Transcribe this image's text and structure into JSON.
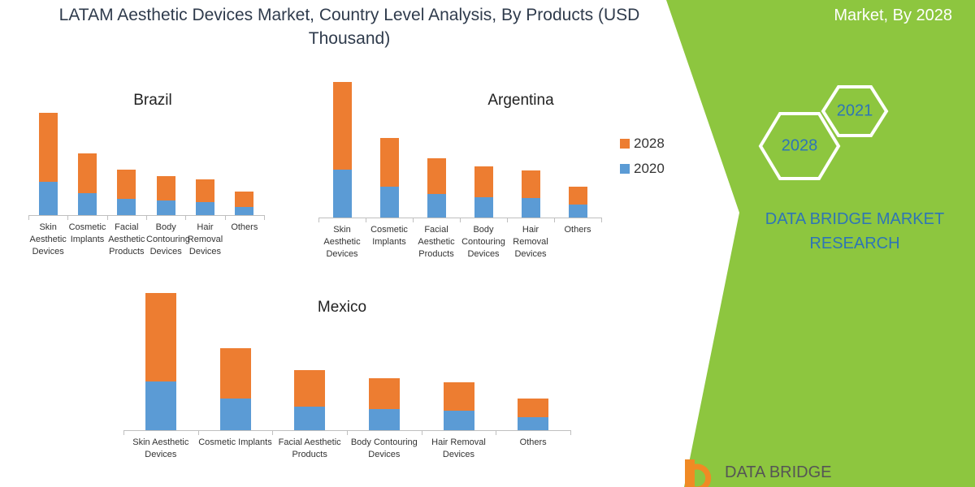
{
  "title": "LATAM Aesthetic Devices Market, Country Level Analysis, By Products (USD Thousand)",
  "panel": {
    "heading": "Market, By 2028",
    "hex_back": "2021",
    "hex_front": "2028",
    "brand": "DATA BRIDGE MARKET RESEARCH",
    "logo": "DATA BRIDGE"
  },
  "chart_data": [
    {
      "type": "stacked-bar",
      "title": "Brazil",
      "categories": [
        "Skin Aesthetic Devices",
        "Cosmetic Implants",
        "Facial Aesthetic Products",
        "Body Contouring Devices",
        "Hair Removal Devices",
        "Others"
      ],
      "series": [
        {
          "color": "#5b9bd5",
          "values": [
            41,
            27,
            20,
            18,
            16,
            10
          ]
        },
        {
          "color": "#ed7d31",
          "values": [
            85,
            49,
            36,
            30,
            28,
            19
          ]
        }
      ]
    },
    {
      "type": "stacked-bar",
      "title": "Argentina",
      "categories": [
        "Skin Aesthetic Devices",
        "Cosmetic Implants",
        "Facial Aesthetic Products",
        "Body Contouring Devices",
        "Hair Removal Devices",
        "Others"
      ],
      "series": [
        {
          "name": "2020",
          "color": "#5b9bd5",
          "values": [
            59,
            38,
            29,
            25,
            24,
            16
          ]
        },
        {
          "name": "2028",
          "color": "#ed7d31",
          "values": [
            108,
            60,
            44,
            38,
            34,
            22
          ]
        }
      ],
      "legend": "right"
    },
    {
      "type": "stacked-bar",
      "title": "Mexico",
      "categories": [
        "Skin Aesthetic Devices",
        "Cosmetic Implants",
        "Facial Aesthetic Products",
        "Body Contouring Devices",
        "Hair Removal Devices",
        "Others"
      ],
      "series": [
        {
          "color": "#5b9bd5",
          "values": [
            60,
            39,
            29,
            26,
            24,
            16
          ]
        },
        {
          "color": "#ed7d31",
          "values": [
            109,
            62,
            45,
            38,
            35,
            23
          ]
        }
      ]
    }
  ]
}
